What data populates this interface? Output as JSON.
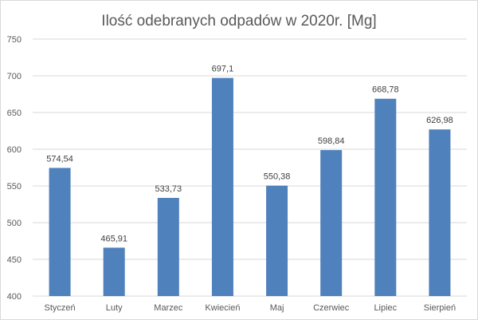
{
  "chart_data": {
    "type": "bar",
    "title": "Ilość odebranych odpadów w 2020r. [Mg]",
    "categories": [
      "Styczeń",
      "Luty",
      "Marzec",
      "Kwiecień",
      "Maj",
      "Czerwiec",
      "Lipiec",
      "Sierpień"
    ],
    "values": [
      574.54,
      465.91,
      533.73,
      697.1,
      550.38,
      598.84,
      668.78,
      626.98
    ],
    "value_labels": [
      "574,54",
      "465,91",
      "533,73",
      "697,1",
      "550,38",
      "598,84",
      "668,78",
      "626,98"
    ],
    "ylim": [
      400,
      750
    ],
    "yticks": [
      400,
      450,
      500,
      550,
      600,
      650,
      700,
      750
    ],
    "grid": true,
    "legend": "none",
    "bar_color": "#4f81bd",
    "grid_color": "#d9d9d9"
  }
}
